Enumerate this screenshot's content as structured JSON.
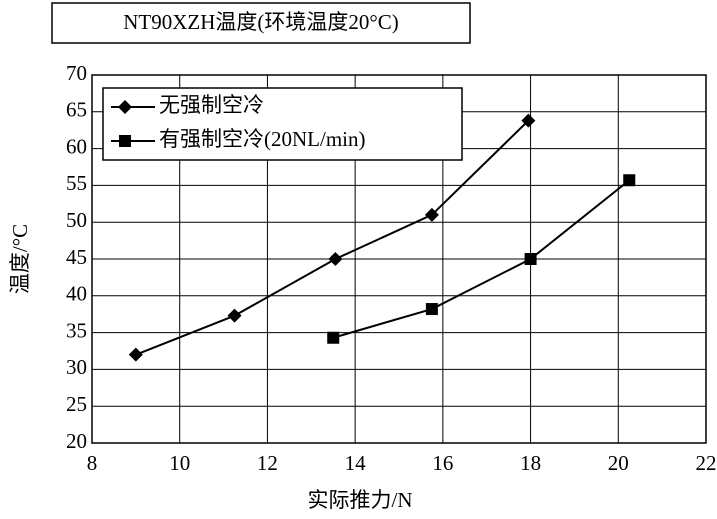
{
  "chart_data": {
    "type": "line",
    "title": "NT90XZH温度(环境温度20°C)",
    "x_label": "实际推力/N",
    "y_label": "温度/°C",
    "series": [
      {
        "name": "无强制空冷",
        "color": "#000000",
        "marker": "diamond",
        "x": [
          9.0,
          11.25,
          13.55,
          15.75,
          17.95
        ],
        "values": [
          32,
          37.3,
          45,
          51,
          63.8
        ]
      },
      {
        "name": "有强制空冷(20NL/min)",
        "color": "#000000",
        "marker": "square",
        "x": [
          13.5,
          15.75,
          18.0,
          20.25
        ],
        "values": [
          34.3,
          38.2,
          45,
          55.7
        ]
      }
    ],
    "xlim": [
      8,
      22
    ],
    "xticks": [
      8,
      10,
      12,
      14,
      16,
      18,
      20,
      22
    ],
    "ylim": [
      20,
      70
    ],
    "yticks": [
      20,
      25,
      30,
      35,
      40,
      45,
      50,
      55,
      60,
      65,
      70
    ],
    "grid": true,
    "legend": "upper left"
  }
}
